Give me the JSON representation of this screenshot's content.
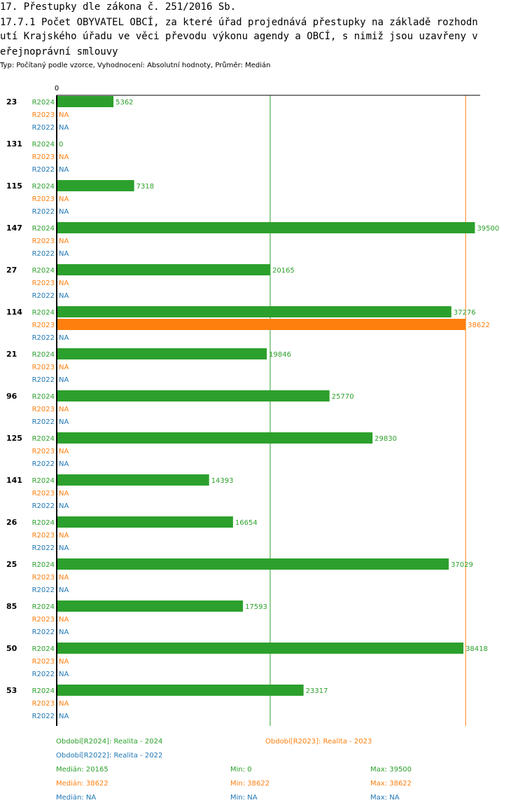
{
  "heading": {
    "line1": "17. Přestupky dle zákona č. 251/2016 Sb.",
    "line2": "17.7.1 Počet OBYVATEL OBCÍ, za které úřad projednává přestupky na základě rozhodn",
    "line3": "utí Krajského úřadu ve věci převodu výkonu agendy a OBCÍ, s nimiž jsou uzavřeny v",
    "line4": "eřejnoprávní smlouvy"
  },
  "subtitle": "Typ: Počítaný podle vzorce, Vyhodnocení: Absolutní hodnoty, Průměr: Medián",
  "colors": {
    "R2024": "#2ca02c",
    "R2023": "#ff7f0e",
    "R2022": "#1f77b4"
  },
  "chart_data": {
    "type": "bar",
    "orientation": "horizontal",
    "axis_zero_label": "0",
    "xlim": [
      0,
      40000
    ],
    "categories": [
      "23",
      "131",
      "115",
      "147",
      "27",
      "114",
      "21",
      "96",
      "125",
      "141",
      "26",
      "25",
      "85",
      "50",
      "53"
    ],
    "series": [
      {
        "name": "R2024",
        "values": [
          5362,
          0,
          7318,
          39500,
          20165,
          37276,
          19846,
          25770,
          29830,
          14393,
          16654,
          37029,
          17593,
          38418,
          23317
        ]
      },
      {
        "name": "R2023",
        "values": [
          null,
          null,
          null,
          null,
          null,
          38622,
          null,
          null,
          null,
          null,
          null,
          null,
          null,
          null,
          null
        ]
      },
      {
        "name": "R2022",
        "values": [
          null,
          null,
          null,
          null,
          null,
          null,
          null,
          null,
          null,
          null,
          null,
          null,
          null,
          null,
          null
        ]
      }
    ],
    "na_label": "NA",
    "reference_lines": [
      {
        "series": "R2024",
        "value": 20165
      },
      {
        "series": "R2023",
        "value": 38622
      }
    ]
  },
  "legend": {
    "items": [
      {
        "series": "R2024",
        "label": "Období[R2024]: Realita - 2024"
      },
      {
        "series": "R2023",
        "label": "Období[R2023]: Realita - 2023"
      },
      {
        "series": "R2022",
        "label": "Období[R2022]: Realita - 2022"
      }
    ],
    "stats": [
      {
        "series": "R2024",
        "median": "Medián: 20165",
        "min": "Min: 0",
        "max": "Max: 39500"
      },
      {
        "series": "R2023",
        "median": "Medián: 38622",
        "min": "Min: 38622",
        "max": "Max: 38622"
      },
      {
        "series": "R2022",
        "median": "Medián: NA",
        "min": "Min: NA",
        "max": "Max: NA"
      }
    ]
  }
}
